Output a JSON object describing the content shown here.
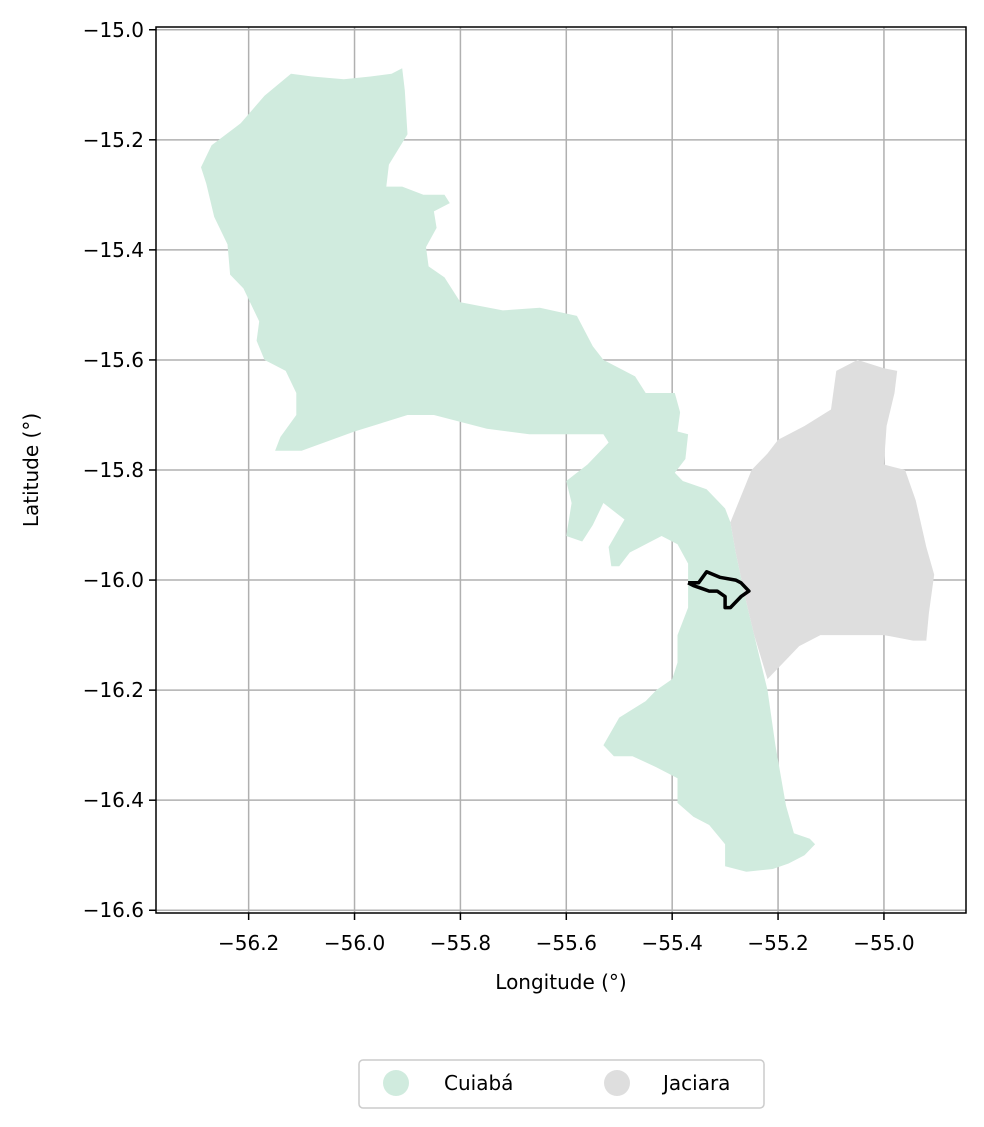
{
  "chart_data": {
    "type": "map",
    "xlabel": "Longitude (°)",
    "ylabel": "Latitude (°)",
    "xlim": [
      -56.375,
      -54.845
    ],
    "ylim": [
      -16.605,
      -14.995
    ],
    "x_ticks": [
      -56.2,
      -56.0,
      -55.8,
      -55.6,
      -55.4,
      -55.2,
      -55.0
    ],
    "x_tick_labels": [
      "−56.2",
      "−56.0",
      "−55.8",
      "−55.6",
      "−55.4",
      "−55.2",
      "−55.0"
    ],
    "y_ticks": [
      -15.0,
      -15.2,
      -15.4,
      -15.6,
      -15.8,
      -16.0,
      -16.2,
      -16.4,
      -16.6
    ],
    "y_tick_labels": [
      "−15.0",
      "−15.2",
      "−15.4",
      "−15.6",
      "−15.8",
      "−16.0",
      "−16.2",
      "−16.4",
      "−16.6"
    ],
    "grid": true,
    "legend_position": "bottom-center",
    "regions": [
      {
        "name": "Cuiabá",
        "color": "#d0ebde",
        "polygon": [
          [
            -55.91,
            -15.07
          ],
          [
            -55.905,
            -15.11
          ],
          [
            -55.9,
            -15.19
          ],
          [
            -55.935,
            -15.245
          ],
          [
            -55.94,
            -15.285
          ],
          [
            -55.91,
            -15.285
          ],
          [
            -55.87,
            -15.3
          ],
          [
            -55.83,
            -15.3
          ],
          [
            -55.82,
            -15.315
          ],
          [
            -55.85,
            -15.33
          ],
          [
            -55.845,
            -15.36
          ],
          [
            -55.865,
            -15.395
          ],
          [
            -55.86,
            -15.43
          ],
          [
            -55.83,
            -15.45
          ],
          [
            -55.8,
            -15.495
          ],
          [
            -55.72,
            -15.51
          ],
          [
            -55.65,
            -15.505
          ],
          [
            -55.58,
            -15.52
          ],
          [
            -55.55,
            -15.575
          ],
          [
            -55.53,
            -15.6
          ],
          [
            -55.47,
            -15.63
          ],
          [
            -55.45,
            -15.66
          ],
          [
            -55.395,
            -15.66
          ],
          [
            -55.385,
            -15.695
          ],
          [
            -55.39,
            -15.73
          ],
          [
            -55.37,
            -15.735
          ],
          [
            -55.375,
            -15.78
          ],
          [
            -55.395,
            -15.805
          ],
          [
            -55.38,
            -15.82
          ],
          [
            -55.335,
            -15.835
          ],
          [
            -55.315,
            -15.855
          ],
          [
            -55.3,
            -15.87
          ],
          [
            -55.29,
            -15.895
          ],
          [
            -55.28,
            -15.95
          ],
          [
            -55.26,
            -16.04
          ],
          [
            -55.245,
            -16.1
          ],
          [
            -55.22,
            -16.2
          ],
          [
            -55.205,
            -16.3
          ],
          [
            -55.185,
            -16.41
          ],
          [
            -55.17,
            -16.46
          ],
          [
            -55.14,
            -16.47
          ],
          [
            -55.13,
            -16.48
          ],
          [
            -55.15,
            -16.5
          ],
          [
            -55.18,
            -16.515
          ],
          [
            -55.21,
            -16.525
          ],
          [
            -55.26,
            -16.53
          ],
          [
            -55.3,
            -16.52
          ],
          [
            -55.3,
            -16.48
          ],
          [
            -55.33,
            -16.445
          ],
          [
            -55.36,
            -16.43
          ],
          [
            -55.39,
            -16.405
          ],
          [
            -55.39,
            -16.36
          ],
          [
            -55.43,
            -16.34
          ],
          [
            -55.475,
            -16.32
          ],
          [
            -55.51,
            -16.32
          ],
          [
            -55.53,
            -16.3
          ],
          [
            -55.5,
            -16.25
          ],
          [
            -55.45,
            -16.22
          ],
          [
            -55.43,
            -16.2
          ],
          [
            -55.4,
            -16.18
          ],
          [
            -55.39,
            -16.15
          ],
          [
            -55.39,
            -16.1
          ],
          [
            -55.37,
            -16.05
          ],
          [
            -55.37,
            -15.97
          ],
          [
            -55.39,
            -15.935
          ],
          [
            -55.42,
            -15.92
          ],
          [
            -55.45,
            -15.935
          ],
          [
            -55.48,
            -15.95
          ],
          [
            -55.5,
            -15.975
          ],
          [
            -55.515,
            -15.975
          ],
          [
            -55.52,
            -15.94
          ],
          [
            -55.49,
            -15.89
          ],
          [
            -55.53,
            -15.86
          ],
          [
            -55.55,
            -15.9
          ],
          [
            -55.57,
            -15.93
          ],
          [
            -55.6,
            -15.92
          ],
          [
            -55.59,
            -15.86
          ],
          [
            -55.6,
            -15.82
          ],
          [
            -55.56,
            -15.79
          ],
          [
            -55.52,
            -15.75
          ],
          [
            -55.53,
            -15.735
          ],
          [
            -55.6,
            -15.735
          ],
          [
            -55.67,
            -15.735
          ],
          [
            -55.75,
            -15.725
          ],
          [
            -55.85,
            -15.7
          ],
          [
            -55.9,
            -15.7
          ],
          [
            -56.0,
            -15.73
          ],
          [
            -56.1,
            -15.765
          ],
          [
            -56.15,
            -15.765
          ],
          [
            -56.14,
            -15.74
          ],
          [
            -56.11,
            -15.7
          ],
          [
            -56.11,
            -15.66
          ],
          [
            -56.13,
            -15.62
          ],
          [
            -56.17,
            -15.6
          ],
          [
            -56.185,
            -15.565
          ],
          [
            -56.18,
            -15.53
          ],
          [
            -56.21,
            -15.47
          ],
          [
            -56.235,
            -15.445
          ],
          [
            -56.24,
            -15.39
          ],
          [
            -56.265,
            -15.34
          ],
          [
            -56.28,
            -15.28
          ],
          [
            -56.29,
            -15.25
          ],
          [
            -56.27,
            -15.21
          ],
          [
            -56.215,
            -15.17
          ],
          [
            -56.17,
            -15.12
          ],
          [
            -56.12,
            -15.08
          ],
          [
            -56.08,
            -15.085
          ],
          [
            -56.02,
            -15.09
          ],
          [
            -55.97,
            -15.085
          ],
          [
            -55.93,
            -15.08
          ]
        ]
      },
      {
        "name": "Jaciara",
        "color": "#dedede",
        "polygon": [
          [
            -55.29,
            -15.895
          ],
          [
            -55.25,
            -15.8
          ],
          [
            -55.22,
            -15.77
          ],
          [
            -55.2,
            -15.745
          ],
          [
            -55.15,
            -15.72
          ],
          [
            -55.1,
            -15.69
          ],
          [
            -55.09,
            -15.62
          ],
          [
            -55.05,
            -15.6
          ],
          [
            -55.0,
            -15.615
          ],
          [
            -54.975,
            -15.62
          ],
          [
            -54.98,
            -15.66
          ],
          [
            -54.995,
            -15.72
          ],
          [
            -55.0,
            -15.79
          ],
          [
            -54.96,
            -15.8
          ],
          [
            -54.94,
            -15.855
          ],
          [
            -54.92,
            -15.94
          ],
          [
            -54.905,
            -15.99
          ],
          [
            -54.915,
            -16.06
          ],
          [
            -54.92,
            -16.11
          ],
          [
            -54.945,
            -16.11
          ],
          [
            -55.0,
            -16.1
          ],
          [
            -55.07,
            -16.1
          ],
          [
            -55.12,
            -16.1
          ],
          [
            -55.16,
            -16.12
          ],
          [
            -55.19,
            -16.15
          ],
          [
            -55.22,
            -16.18
          ],
          [
            -55.245,
            -16.1
          ],
          [
            -55.26,
            -16.04
          ],
          [
            -55.28,
            -15.95
          ]
        ]
      }
    ],
    "highlight_outline": {
      "color": "#000000",
      "polygon": [
        [
          -55.37,
          -16.005
        ],
        [
          -55.35,
          -16.005
        ],
        [
          -55.335,
          -15.985
        ],
        [
          -55.31,
          -15.995
        ],
        [
          -55.28,
          -16.0
        ],
        [
          -55.27,
          -16.005
        ],
        [
          -55.255,
          -16.02
        ],
        [
          -55.27,
          -16.03
        ],
        [
          -55.29,
          -16.05
        ],
        [
          -55.3,
          -16.05
        ],
        [
          -55.3,
          -16.03
        ],
        [
          -55.315,
          -16.02
        ],
        [
          -55.33,
          -16.02
        ],
        [
          -55.345,
          -16.015
        ],
        [
          -55.36,
          -16.01
        ],
        [
          -55.37,
          -16.005
        ]
      ]
    }
  }
}
